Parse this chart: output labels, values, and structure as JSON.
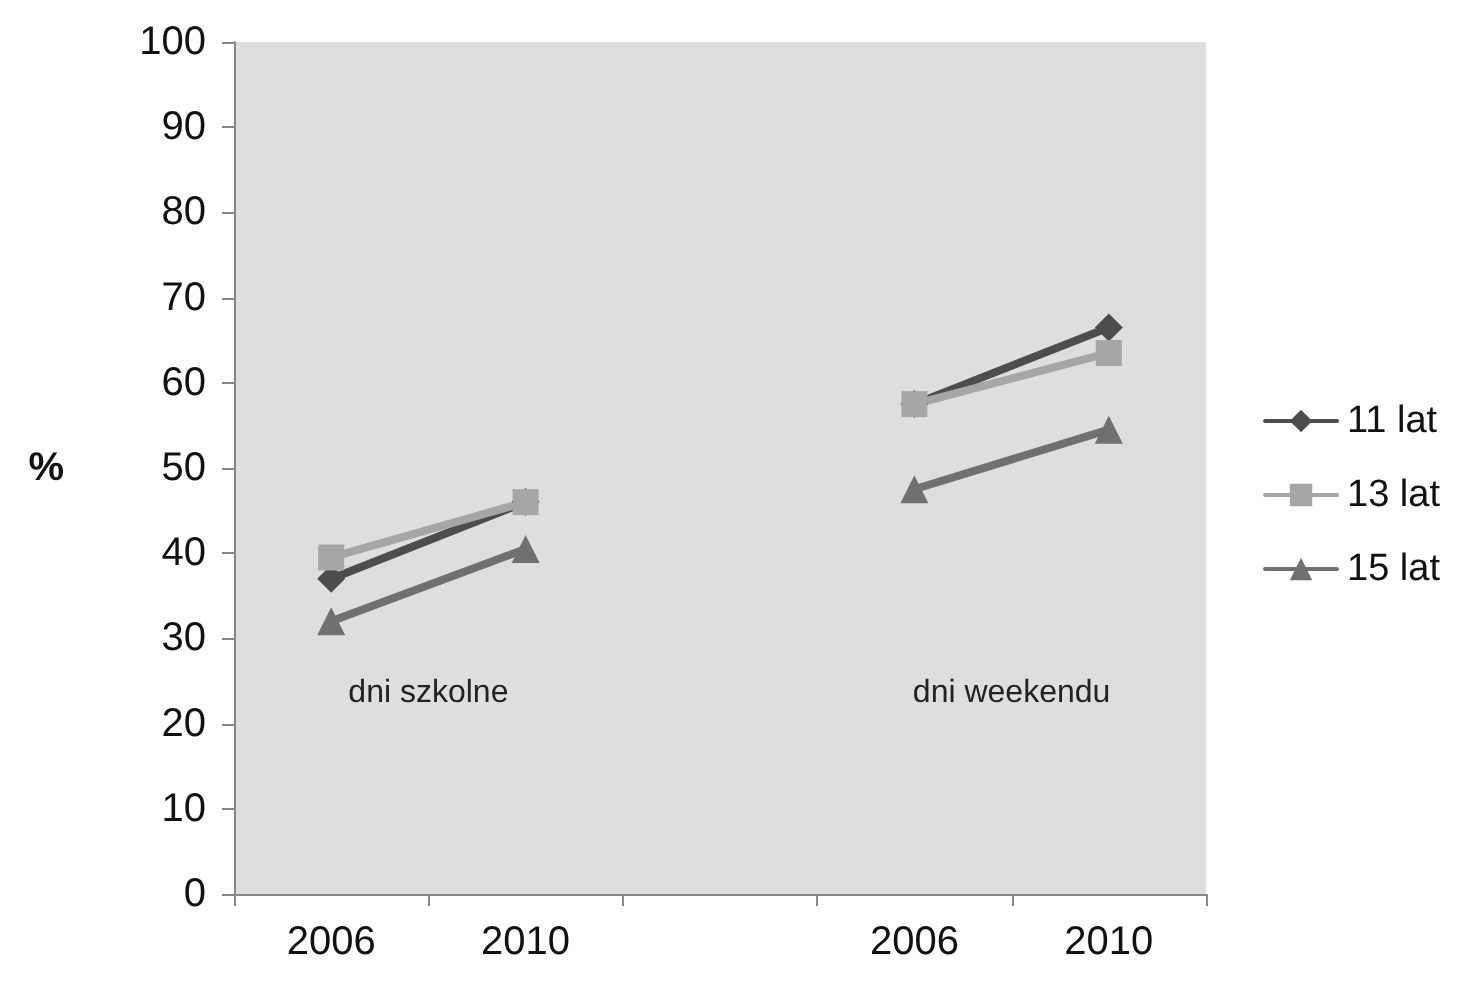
{
  "chart_data": {
    "type": "line",
    "ylabel": "%",
    "categories": [
      "2006",
      "2010",
      null,
      "2006",
      "2010"
    ],
    "series": [
      {
        "name": "11 lat",
        "color": "#4d4d4d",
        "marker": "diamond",
        "values": [
          37,
          46,
          null,
          57.5,
          66.5
        ]
      },
      {
        "name": "13 lat",
        "color": "#a6a6a6",
        "marker": "square",
        "values": [
          39.5,
          46,
          null,
          57.5,
          63.5
        ]
      },
      {
        "name": "15 lat",
        "color": "#707070",
        "marker": "triangle",
        "values": [
          32,
          40.5,
          null,
          47.5,
          54.5
        ]
      }
    ],
    "annotations": [
      "dni szkolne",
      "dni weekendu"
    ],
    "ylim": [
      0,
      100
    ],
    "yticks": [
      0,
      10,
      20,
      30,
      40,
      50,
      60,
      70,
      80,
      90,
      100
    ],
    "grid": false,
    "legend": "right"
  }
}
